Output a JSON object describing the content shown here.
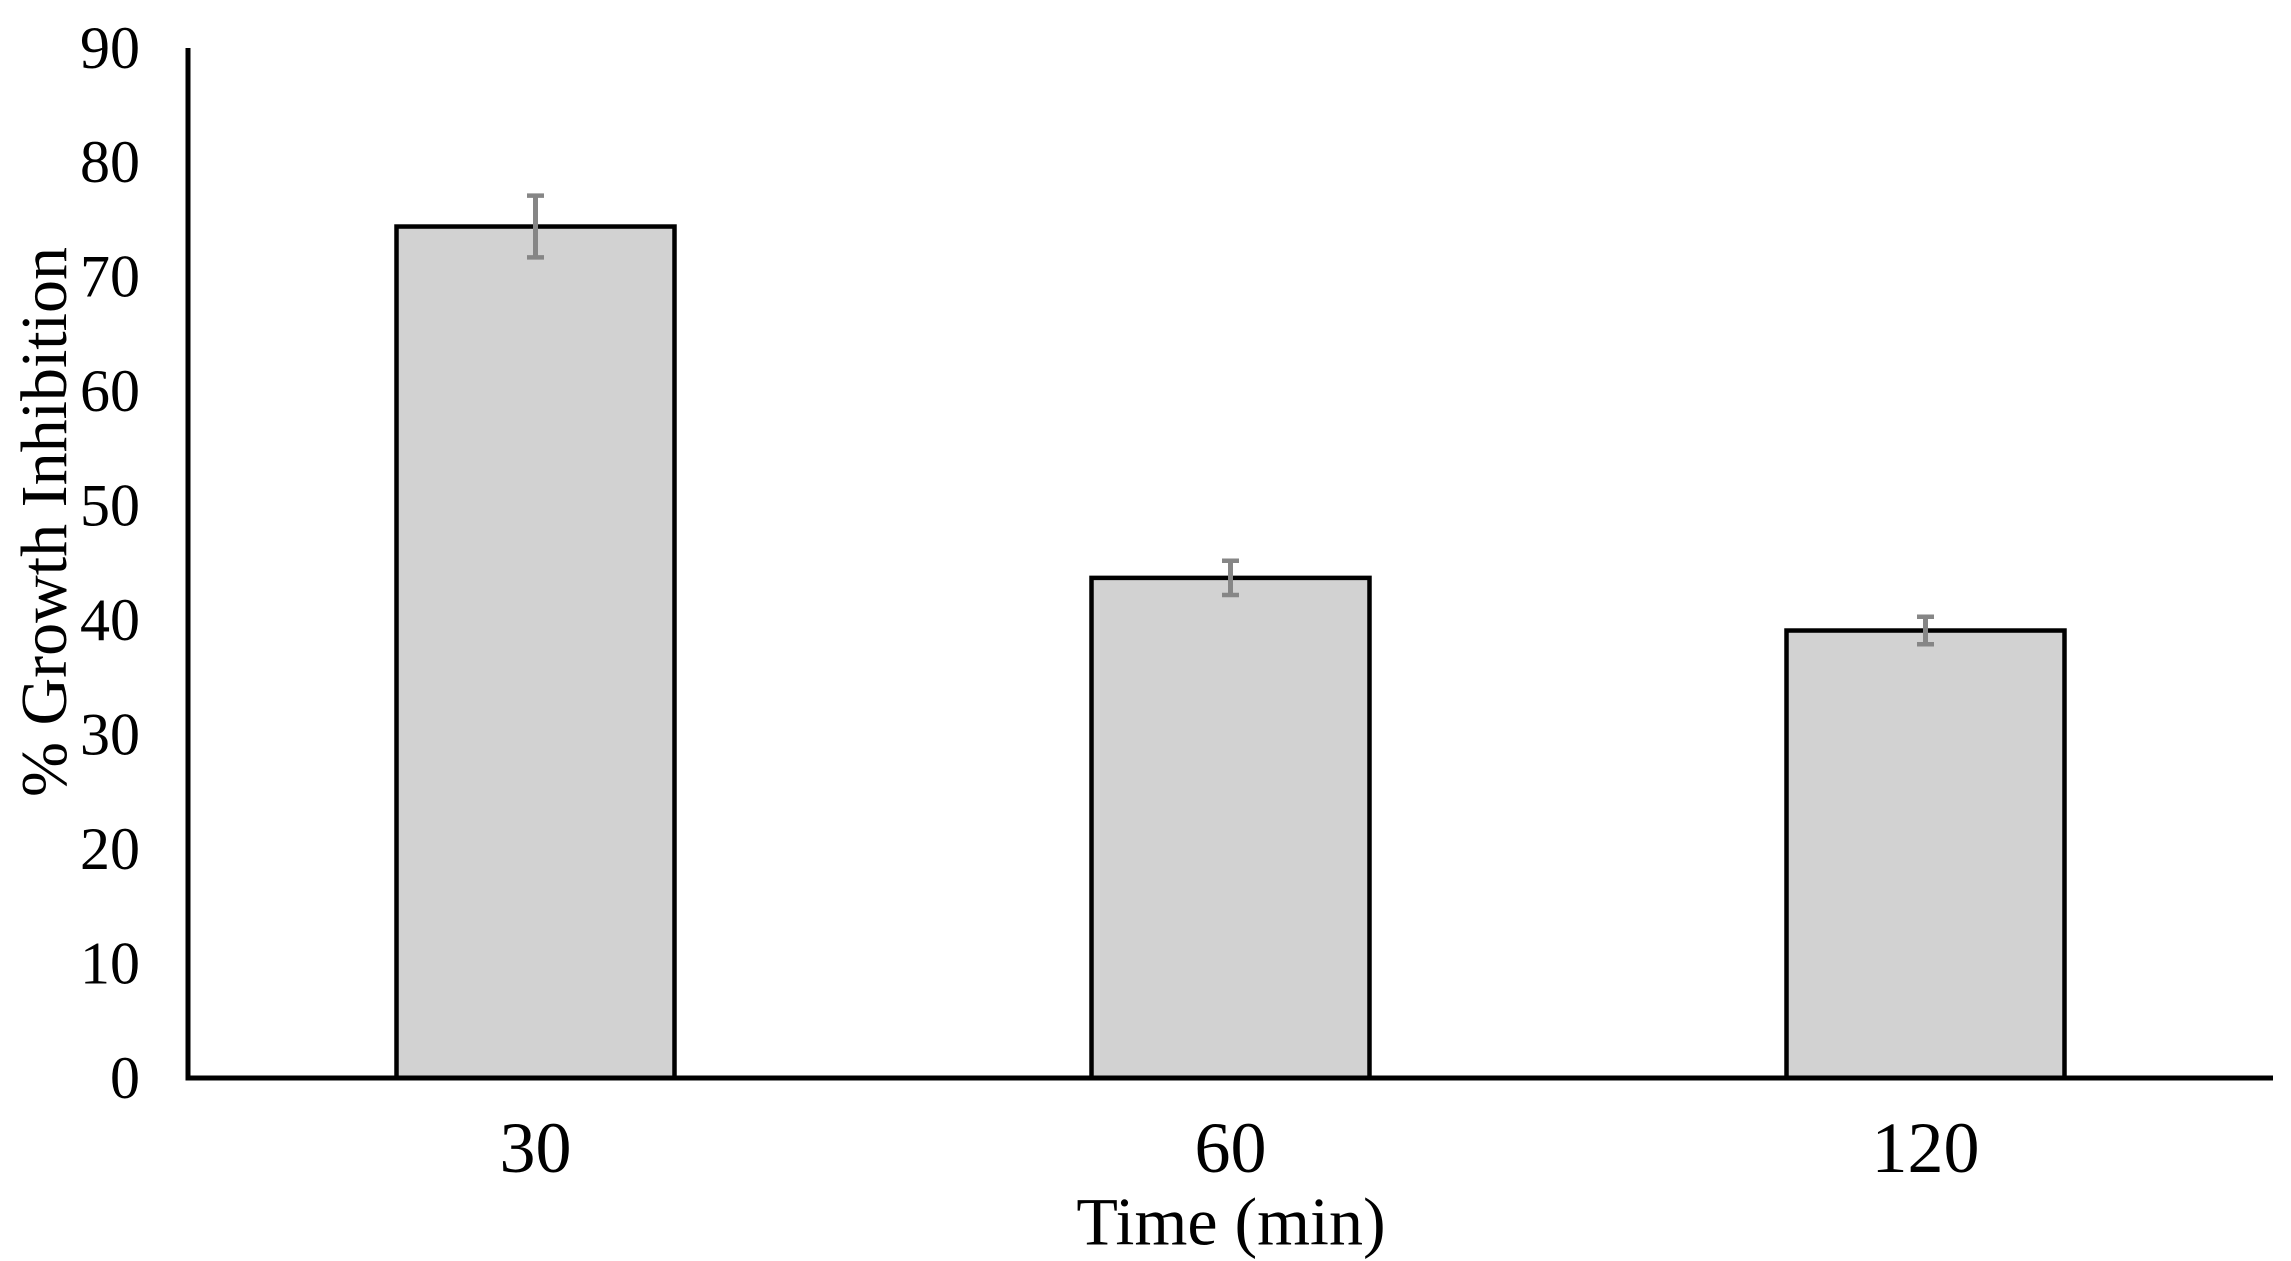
{
  "chart_data": {
    "type": "bar",
    "title": "",
    "categories": [
      "30",
      "60",
      "120"
    ],
    "values": [
      74.4,
      43.7,
      39.1
    ],
    "errors": [
      2.7,
      1.5,
      1.2
    ],
    "xlabel": "Time (min)",
    "ylabel": "% Growth Inhibition",
    "ylim": [
      0,
      90
    ],
    "ytick_step": 10,
    "yticks": [
      "0",
      "10",
      "20",
      "30",
      "40",
      "50",
      "60",
      "70",
      "80",
      "90"
    ],
    "grid": false,
    "legend": false,
    "colors": {
      "background": "#ffffff",
      "bar_fill": "#d2d2d2",
      "bar_border": "#000000",
      "error_bar": "#868686",
      "axis": "#000000",
      "text": "#000000"
    }
  }
}
